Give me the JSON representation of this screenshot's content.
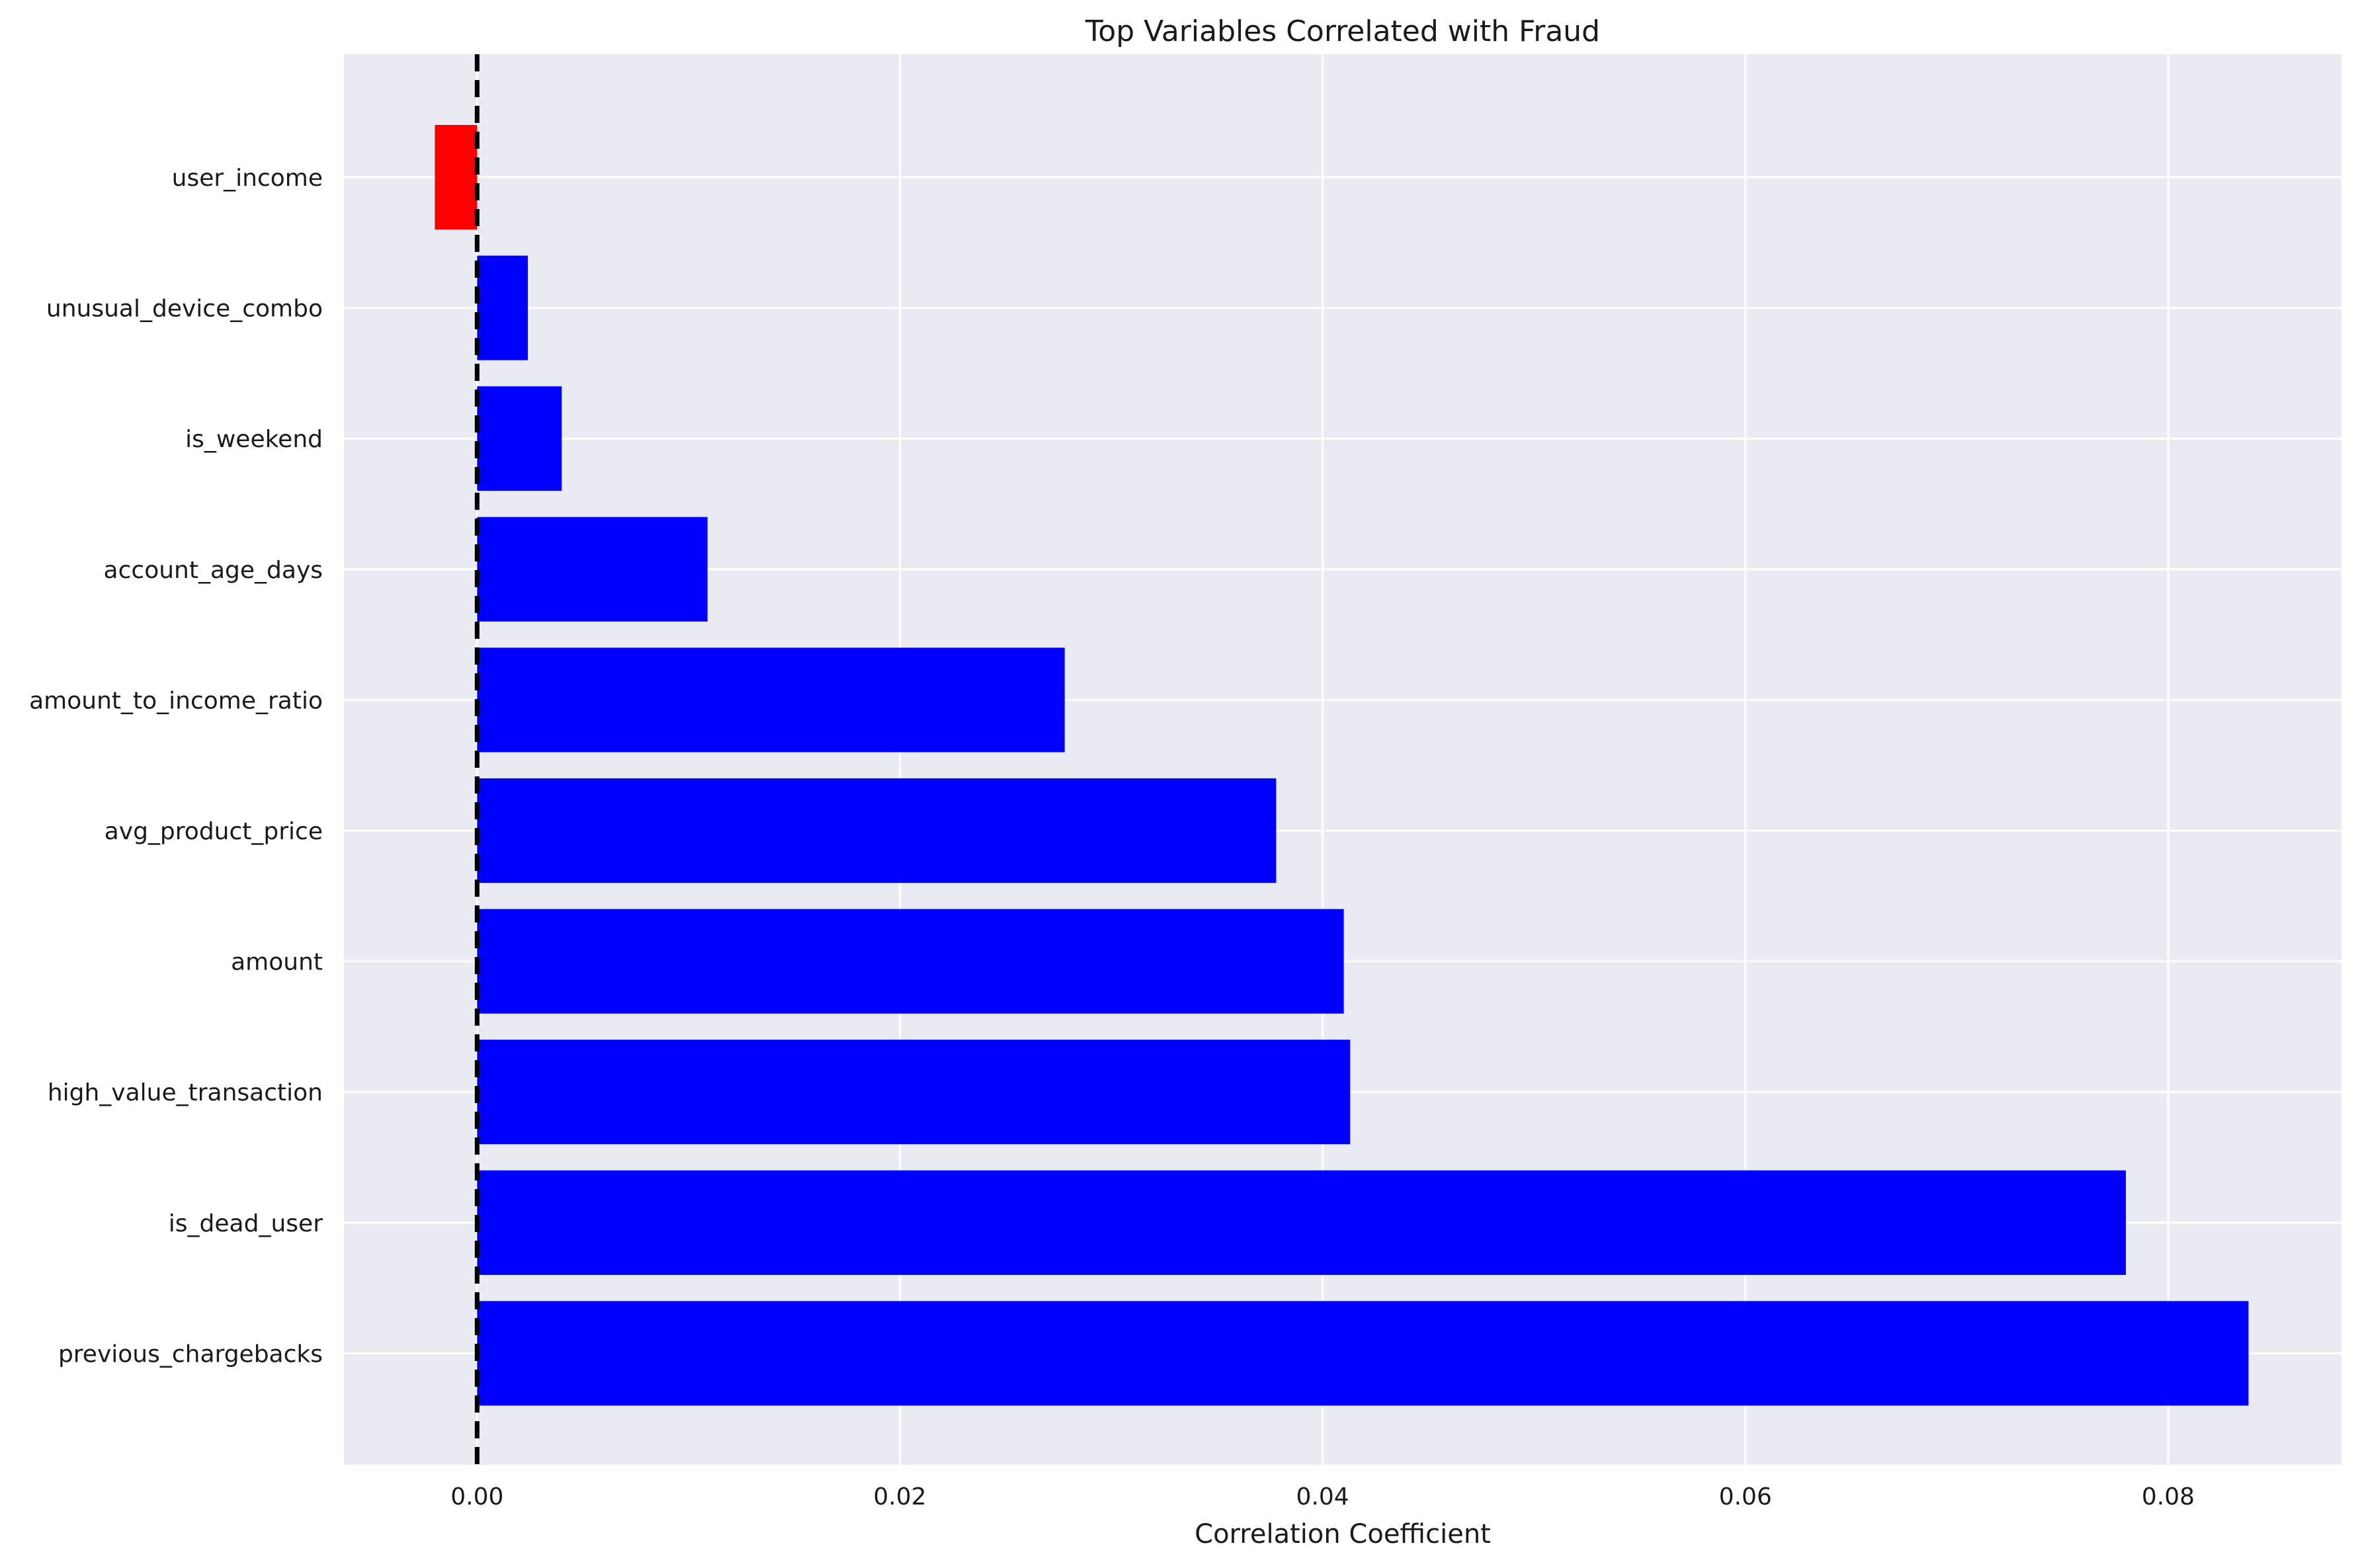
{
  "chart_data": {
    "type": "bar",
    "orientation": "horizontal",
    "title": "Top Variables Correlated with Fraud",
    "xlabel": "Correlation Coefficient",
    "ylabel": "",
    "categories": [
      "user_income",
      "unusual_device_combo",
      "is_weekend",
      "account_age_days",
      "amount_to_income_ratio",
      "avg_product_price",
      "amount",
      "high_value_transaction",
      "is_dead_user",
      "previous_chargebacks"
    ],
    "values": [
      -0.002,
      0.0024,
      0.004,
      0.0109,
      0.0278,
      0.0378,
      0.041,
      0.0413,
      0.078,
      0.0838
    ],
    "xlim": [
      -0.0063,
      0.0882
    ],
    "xticks": [
      0.0,
      0.02,
      0.04,
      0.06,
      0.08
    ],
    "xtick_labels": [
      "0.00",
      "0.02",
      "0.04",
      "0.06",
      "0.08"
    ],
    "reference_line": 0.0,
    "grid": true,
    "colors": {
      "positive": "#0000ff",
      "negative": "#ff0000",
      "background": "#eaeaf2",
      "grid": "#ffffff",
      "reference_line": "#000000"
    }
  }
}
